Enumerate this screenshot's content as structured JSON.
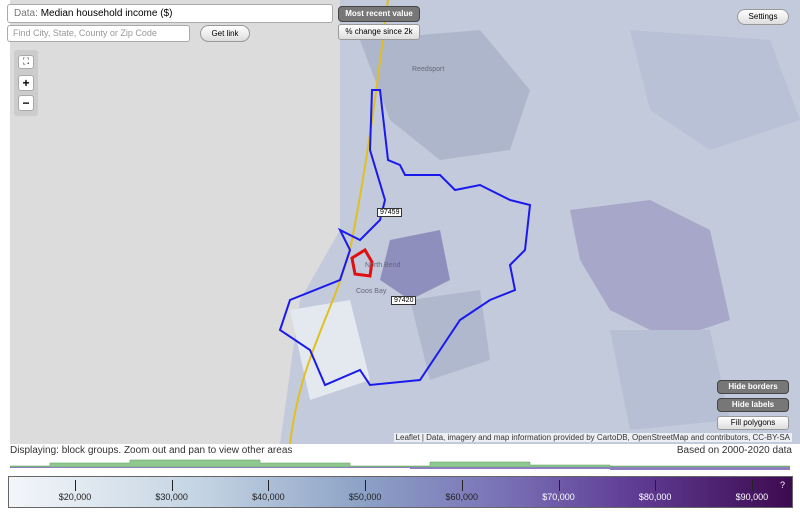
{
  "toolbar": {
    "data_prefix": "Data:",
    "data_value": "Median household income ($)",
    "search_placeholder": "Find City, State, County or Zip Code",
    "get_link": "Get link",
    "most_recent": "Most recent value",
    "change_since": "% change since 2k",
    "settings": "Settings"
  },
  "zoom": {
    "zoom_in": "+",
    "zoom_out": "−"
  },
  "map": {
    "labels": [
      "97459",
      "97420"
    ],
    "places": [
      "Reedsport",
      "North Bend",
      "Coos Bay"
    ],
    "buttons": [
      "Hide borders",
      "Hide labels",
      "Fill polygons"
    ],
    "attribution": "Leaflet | Data, imagery and map information provided by CartoDB, OpenStreetMap and contributors, CC-BY-SA"
  },
  "status": {
    "displaying": "Displaying: block groups. Zoom out and pan to view other areas",
    "based_on": "Based on 2000-2020 data"
  },
  "legend": {
    "ticks": [
      "$20,000",
      "$30,000",
      "$40,000",
      "$50,000",
      "$60,000",
      "$70,000",
      "$80,000",
      "$90,000"
    ],
    "help": "?"
  }
}
